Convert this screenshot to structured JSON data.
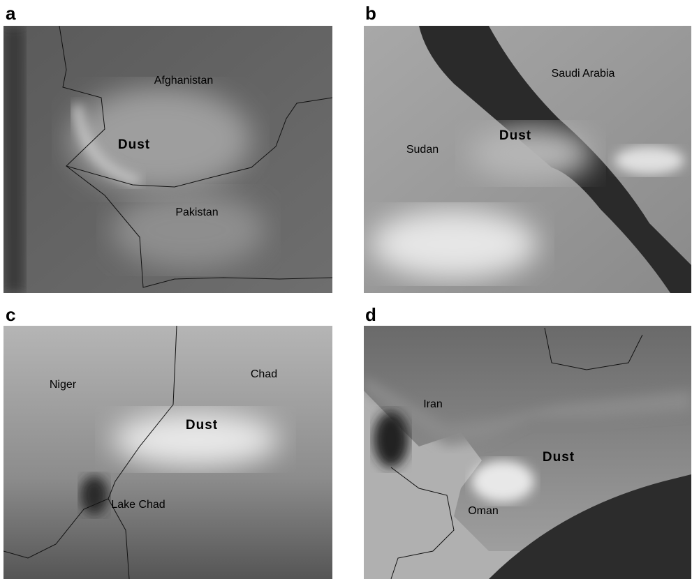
{
  "panels": [
    {
      "letter": "a",
      "labels": [
        "Afghanistan",
        "Dust",
        "Pakistan"
      ]
    },
    {
      "letter": "b",
      "labels": [
        "Saudi Arabia",
        "Dust",
        "Sudan"
      ]
    },
    {
      "letter": "c",
      "labels": [
        "Niger",
        "Chad",
        "Dust",
        "Lake Chad"
      ]
    },
    {
      "letter": "d",
      "labels": [
        "Iran",
        "Dust",
        "Oman"
      ]
    }
  ]
}
